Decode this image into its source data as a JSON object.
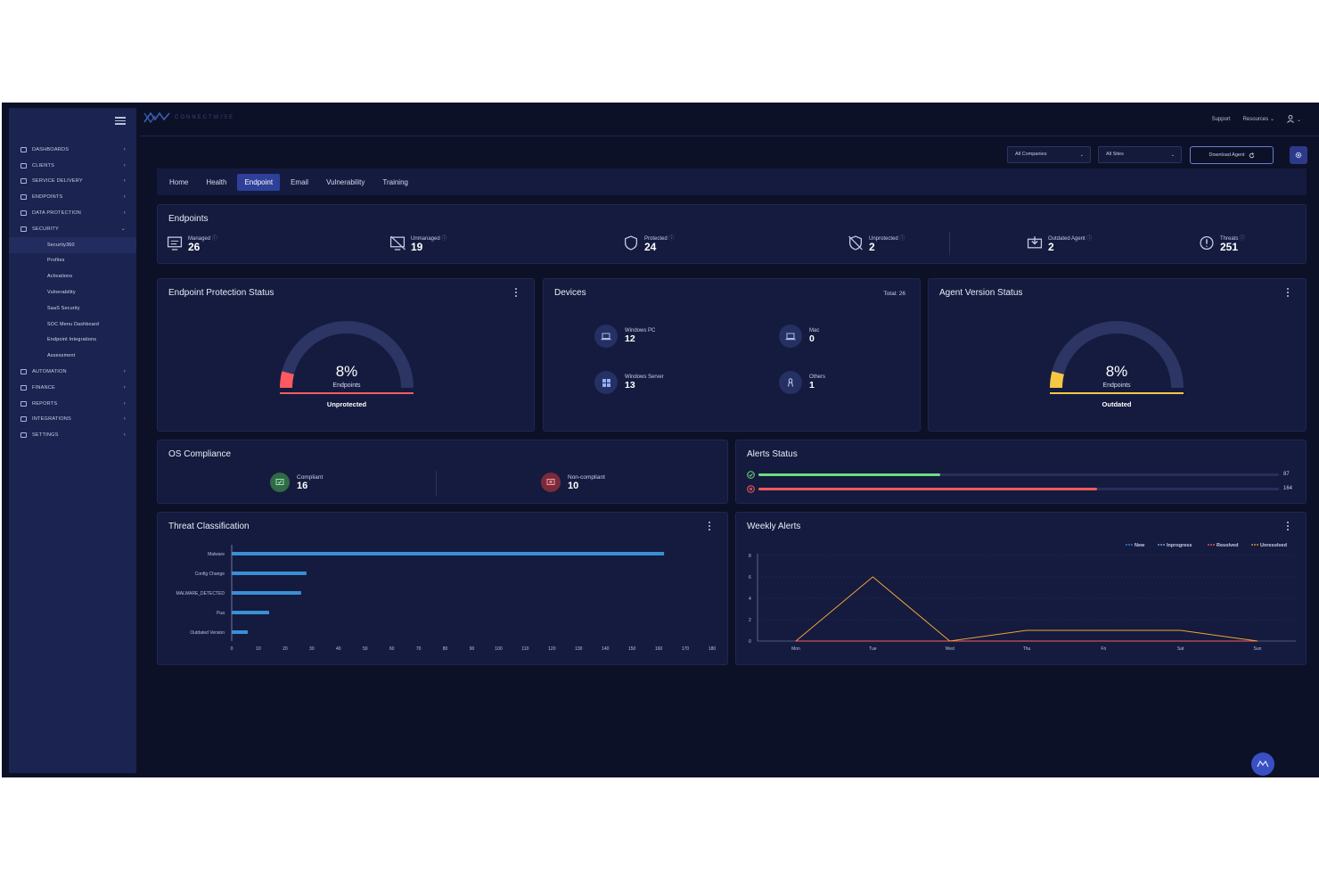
{
  "header": {
    "brand": "CONNECTWISE",
    "links": [
      "Support",
      "Resources"
    ]
  },
  "sidebar": {
    "items": [
      {
        "label": "DASHBOARDS",
        "icon": "dashboard-icon"
      },
      {
        "label": "CLIENTS",
        "icon": "clients-icon"
      },
      {
        "label": "SERVICE DELIVERY",
        "icon": "service-icon"
      },
      {
        "label": "ENDPOINTS",
        "icon": "endpoints-icon"
      },
      {
        "label": "DATA PROTECTION",
        "icon": "lock-icon"
      },
      {
        "label": "SECURITY",
        "icon": "shield-icon"
      }
    ],
    "security_sub": [
      "Security360",
      "Profiles",
      "Activations",
      "Vulnerability",
      "SaaS Security",
      "SOC Menu Dashboard",
      "Endpoint Integrations",
      "Assessment"
    ],
    "items_after": [
      {
        "label": "AUTOMATION",
        "icon": "automation-icon"
      },
      {
        "label": "FINANCE",
        "icon": "finance-icon"
      },
      {
        "label": "REPORTS",
        "icon": "reports-icon"
      },
      {
        "label": "INTEGRATIONS",
        "icon": "integrations-icon"
      },
      {
        "label": "SETTINGS",
        "icon": "gear-icon"
      }
    ]
  },
  "filters": {
    "companies": "All Companies",
    "sites": "All Sites",
    "download": "Download Agent"
  },
  "tabs": [
    "Home",
    "Health",
    "Endpoint",
    "Email",
    "Vulnerability",
    "Training"
  ],
  "active_tab": "Endpoint",
  "endpoints": {
    "title": "Endpoints",
    "items": [
      {
        "label": "Managed",
        "value": "26"
      },
      {
        "label": "Unmanaged",
        "value": "19"
      },
      {
        "label": "Protected",
        "value": "24"
      },
      {
        "label": "Unprotected",
        "value": "2"
      },
      {
        "label": "Outdated Agent",
        "value": "2"
      },
      {
        "label": "Threats",
        "value": "251"
      }
    ]
  },
  "protection": {
    "title": "Endpoint Protection Status",
    "percent": "8%",
    "fraction": 0.08,
    "sub": "Endpoints",
    "status": "Unprotected",
    "color": "#ff5a5f"
  },
  "devices": {
    "title": "Devices",
    "total": "Total: 26",
    "items": [
      {
        "label": "Windows PC",
        "value": "12",
        "icon": "laptop-icon"
      },
      {
        "label": "Mac",
        "value": "0",
        "icon": "laptop-icon"
      },
      {
        "label": "Windows Server",
        "value": "13",
        "icon": "windows-icon"
      },
      {
        "label": "Others",
        "value": "1",
        "icon": "linux-icon"
      }
    ]
  },
  "agent": {
    "title": "Agent Version Status",
    "percent": "8%",
    "fraction": 0.08,
    "sub": "Endpoints",
    "status": "Outdated",
    "color": "#f6c744"
  },
  "os": {
    "title": "OS Compliance",
    "compliant_label": "Compliant",
    "compliant_value": "16",
    "noncompliant_label": "Non-compliant",
    "noncompliant_value": "10"
  },
  "alerts": {
    "title": "Alerts Status",
    "bars": [
      {
        "value": "87",
        "fraction": 0.35,
        "color": "#6fdc82"
      },
      {
        "value": "164",
        "fraction": 0.65,
        "color": "#ff5a5f"
      }
    ]
  },
  "chart_data": [
    {
      "type": "bar",
      "orientation": "horizontal",
      "title": "Threat Classification",
      "categories": [
        "Malware",
        "Config Change",
        "MALWARE_DETECTED",
        "Pua",
        "Outdated Version"
      ],
      "values": [
        162,
        28,
        26,
        14,
        6
      ],
      "xlim": [
        0,
        180
      ],
      "xticks": [
        0,
        10,
        20,
        30,
        40,
        50,
        60,
        70,
        80,
        90,
        100,
        110,
        120,
        130,
        140,
        150,
        160,
        170,
        180
      ],
      "color": "#3a8fd6"
    },
    {
      "type": "line",
      "title": "Weekly Alerts",
      "categories": [
        "Mon",
        "Tue",
        "Wed",
        "Thu",
        "Fri",
        "Sat",
        "Sun"
      ],
      "ylim": [
        0,
        8
      ],
      "yticks": [
        0,
        2,
        4,
        6,
        8
      ],
      "series": [
        {
          "name": "New",
          "color": "#3b8fe0",
          "values": [
            0,
            0,
            0,
            0,
            0,
            0,
            0
          ]
        },
        {
          "name": "Inprogress",
          "color": "#8fb6ff",
          "values": [
            0,
            0,
            0,
            0,
            0,
            0,
            0
          ]
        },
        {
          "name": "Resolved",
          "color": "#ff5a5f",
          "values": [
            0,
            0,
            0,
            0,
            0,
            0,
            0
          ]
        },
        {
          "name": "Unresolved",
          "color": "#f2a23a",
          "values": [
            0,
            6,
            0,
            1,
            1,
            1,
            0
          ]
        }
      ],
      "legend": "top-right"
    }
  ]
}
